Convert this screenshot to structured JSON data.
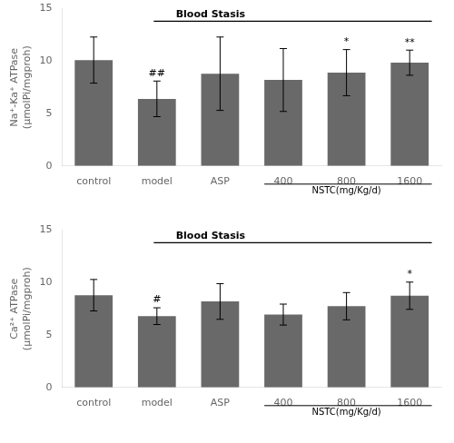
{
  "chart_data": [
    {
      "type": "bar",
      "categories": [
        "control",
        "model",
        "ASP",
        "400",
        "800",
        "1600"
      ],
      "values": [
        10.1,
        6.4,
        8.8,
        8.2,
        8.9,
        9.85
      ],
      "errors": [
        2.2,
        1.7,
        3.5,
        3.0,
        2.2,
        1.2
      ],
      "bar_labels": [
        null,
        "##",
        null,
        null,
        "*",
        "**"
      ],
      "color": "#696969",
      "ylabel": "Na⁺-Ka⁺ ATPase\n(μmolPi/mgproh)",
      "ylim": [
        0,
        15
      ],
      "yticks": [
        0,
        5,
        10,
        15
      ],
      "annotations": [
        "Blood Stasis",
        "NSTC(mg/Kg/d)"
      ],
      "grid": false
    },
    {
      "type": "bar",
      "categories": [
        "control",
        "model",
        "ASP",
        "400",
        "800",
        "1600"
      ],
      "values": [
        8.8,
        6.8,
        8.2,
        6.95,
        7.75,
        8.75
      ],
      "errors": [
        1.5,
        0.8,
        1.7,
        1.0,
        1.3,
        1.3
      ],
      "bar_labels": [
        null,
        "#",
        null,
        null,
        null,
        "*"
      ],
      "color": "#696969",
      "ylabel": "Ca²⁺ ATPase\n(μmolPi/mgproh)",
      "ylim": [
        0,
        15
      ],
      "yticks": [
        0,
        5,
        10,
        15
      ],
      "annotations": [
        "Blood Stasis",
        "NSTC(mg/Kg/d)"
      ],
      "grid": false
    }
  ]
}
